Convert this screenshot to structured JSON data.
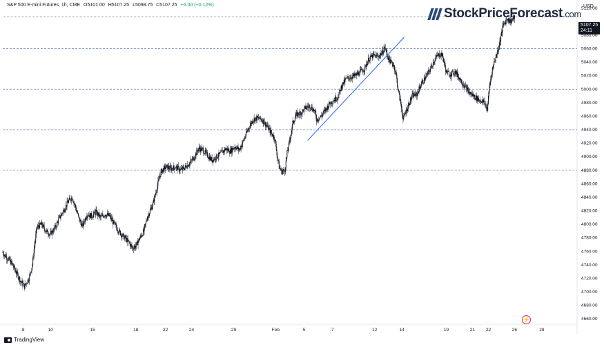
{
  "header": {
    "symbol": "S&P 500 E-mini Futures, 1h, CME",
    "open": "O5101.00",
    "high": "H5107.25",
    "low": "L5098.75",
    "close": "C5107.25",
    "change": "+6.00 (+0.12%)"
  },
  "watermark": {
    "text": "TradingView"
  },
  "logo": {
    "text": "StockPriceForecast",
    "suffix": ".com"
  },
  "price_axis": {
    "unit": "USD"
  },
  "last_price": {
    "value": "5107.25",
    "countdown": "24:11"
  },
  "colors": {
    "up": "#089981",
    "candle": "#131722",
    "hline": "#5b7fb8",
    "trendline": "#2962ff",
    "last_price_bg": "#131722"
  },
  "icons": {
    "reload": "lightning-refresh-icon"
  },
  "chart_data": {
    "type": "candlestick",
    "title": "S&P 500 E-mini Futures, 1h, CME",
    "xlabel": "",
    "ylabel": "",
    "y_unit": "USD",
    "ylim": [
      4652,
      5132
    ],
    "grid": false,
    "x_tick_labels": [
      {
        "label": "8",
        "t": 18
      },
      {
        "label": "10",
        "t": 42
      },
      {
        "label": "15",
        "t": 79
      },
      {
        "label": "18",
        "t": 117
      },
      {
        "label": "22",
        "t": 143
      },
      {
        "label": "24",
        "t": 166
      },
      {
        "label": "29",
        "t": 203
      },
      {
        "label": "Feb",
        "t": 240
      },
      {
        "label": "5",
        "t": 265
      },
      {
        "label": "7",
        "t": 290
      },
      {
        "label": "12",
        "t": 327
      },
      {
        "label": "14",
        "t": 351
      },
      {
        "label": "19",
        "t": 390
      },
      {
        "label": "21",
        "t": 413
      },
      {
        "label": "22",
        "t": 427
      },
      {
        "label": "26",
        "t": 450
      },
      {
        "label": "28",
        "t": 474
      }
    ],
    "x_range": [
      0,
      505
    ],
    "y_ticks": [
      4660,
      4680,
      4700,
      4720,
      4740,
      4760,
      4780,
      4800,
      4820,
      4840,
      4860,
      4880,
      4900,
      4920,
      4940,
      4960,
      4980,
      5000,
      5020,
      5040,
      5060,
      5080,
      5120
    ],
    "horizontal_levels": [
      5060,
      5000,
      4940,
      4880
    ],
    "trendline": {
      "from": {
        "t": 268,
        "price": 4924
      },
      "to": {
        "t": 353,
        "price": 5077
      }
    },
    "price_path": [
      [
        0,
        4758
      ],
      [
        4,
        4750
      ],
      [
        8,
        4742
      ],
      [
        12,
        4728
      ],
      [
        16,
        4715
      ],
      [
        19,
        4708
      ],
      [
        23,
        4720
      ],
      [
        26,
        4740
      ],
      [
        28,
        4770
      ],
      [
        30,
        4795
      ],
      [
        34,
        4800
      ],
      [
        38,
        4790
      ],
      [
        42,
        4785
      ],
      [
        46,
        4795
      ],
      [
        50,
        4810
      ],
      [
        54,
        4822
      ],
      [
        58,
        4835
      ],
      [
        61,
        4840
      ],
      [
        64,
        4825
      ],
      [
        67,
        4808
      ],
      [
        70,
        4797
      ],
      [
        74,
        4815
      ],
      [
        78,
        4812
      ],
      [
        82,
        4818
      ],
      [
        86,
        4810
      ],
      [
        90,
        4815
      ],
      [
        94,
        4812
      ],
      [
        98,
        4800
      ],
      [
        102,
        4790
      ],
      [
        106,
        4782
      ],
      [
        110,
        4775
      ],
      [
        114,
        4765
      ],
      [
        117,
        4768
      ],
      [
        120,
        4778
      ],
      [
        124,
        4790
      ],
      [
        127,
        4810
      ],
      [
        130,
        4822
      ],
      [
        132,
        4830
      ],
      [
        135,
        4850
      ],
      [
        138,
        4872
      ],
      [
        140,
        4880
      ],
      [
        144,
        4885
      ],
      [
        148,
        4882
      ],
      [
        152,
        4885
      ],
      [
        156,
        4880
      ],
      [
        160,
        4884
      ],
      [
        164,
        4890
      ],
      [
        168,
        4898
      ],
      [
        172,
        4912
      ],
      [
        176,
        4910
      ],
      [
        180,
        4902
      ],
      [
        184,
        4895
      ],
      [
        188,
        4900
      ],
      [
        192,
        4905
      ],
      [
        196,
        4912
      ],
      [
        200,
        4908
      ],
      [
        204,
        4915
      ],
      [
        208,
        4910
      ],
      [
        212,
        4925
      ],
      [
        216,
        4942
      ],
      [
        220,
        4955
      ],
      [
        224,
        4957
      ],
      [
        228,
        4955
      ],
      [
        232,
        4946
      ],
      [
        236,
        4935
      ],
      [
        239,
        4928
      ],
      [
        241,
        4905
      ],
      [
        243,
        4885
      ],
      [
        245,
        4878
      ],
      [
        248,
        4880
      ],
      [
        250,
        4905
      ],
      [
        253,
        4930
      ],
      [
        255,
        4950
      ],
      [
        258,
        4962
      ],
      [
        262,
        4965
      ],
      [
        266,
        4972
      ],
      [
        270,
        4975
      ],
      [
        274,
        4968
      ],
      [
        276,
        4955
      ],
      [
        280,
        4960
      ],
      [
        284,
        4970
      ],
      [
        288,
        4980
      ],
      [
        292,
        4985
      ],
      [
        295,
        4990
      ],
      [
        298,
        5005
      ],
      [
        302,
        5015
      ],
      [
        306,
        5018
      ],
      [
        310,
        5020
      ],
      [
        314,
        5025
      ],
      [
        318,
        5030
      ],
      [
        322,
        5045
      ],
      [
        326,
        5050
      ],
      [
        330,
        5048
      ],
      [
        334,
        5055
      ],
      [
        336,
        5062
      ],
      [
        338,
        5050
      ],
      [
        341,
        5040
      ],
      [
        344,
        5035
      ],
      [
        346,
        5020
      ],
      [
        348,
        4995
      ],
      [
        350,
        4978
      ],
      [
        352,
        4955
      ],
      [
        354,
        4965
      ],
      [
        357,
        4978
      ],
      [
        360,
        4990
      ],
      [
        364,
        4992
      ],
      [
        368,
        5008
      ],
      [
        372,
        5018
      ],
      [
        376,
        5030
      ],
      [
        380,
        5045
      ],
      [
        383,
        5050
      ],
      [
        386,
        5052
      ],
      [
        388,
        5040
      ],
      [
        390,
        5025
      ],
      [
        394,
        5022
      ],
      [
        398,
        5026
      ],
      [
        402,
        5015
      ],
      [
        406,
        5005
      ],
      [
        410,
        4995
      ],
      [
        414,
        4990
      ],
      [
        418,
        4985
      ],
      [
        422,
        4982
      ],
      [
        424,
        4978
      ],
      [
        426,
        4970
      ],
      [
        428,
        5005
      ],
      [
        430,
        5025
      ],
      [
        432,
        5040
      ],
      [
        434,
        5050
      ],
      [
        436,
        5062
      ],
      [
        438,
        5078
      ],
      [
        440,
        5095
      ],
      [
        442,
        5100
      ],
      [
        444,
        5105
      ],
      [
        446,
        5100
      ],
      [
        448,
        5103
      ],
      [
        450,
        5107.25
      ]
    ]
  }
}
